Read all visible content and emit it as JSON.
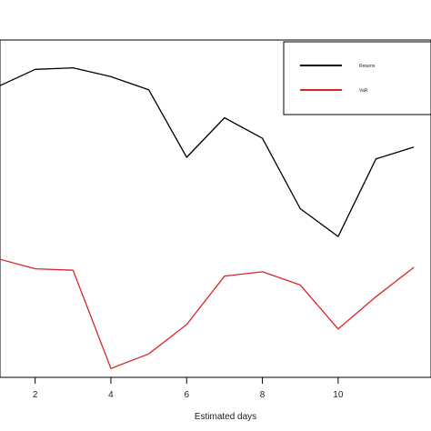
{
  "chart_data": {
    "type": "line",
    "title": "",
    "xlabel": "Estimated days",
    "ylabel": "",
    "xlim": [
      1,
      12.5
    ],
    "x_ticks": [
      2,
      4,
      6,
      8,
      10
    ],
    "x_tick_labels": [
      "2",
      "4",
      "6",
      "8",
      "10"
    ],
    "x": [
      1,
      2,
      3,
      4,
      5,
      6,
      7,
      8,
      9,
      10,
      11,
      12
    ],
    "series": [
      {
        "name": "Returns",
        "color": "#000000",
        "values": [
          0.89,
          0.95,
          0.955,
          0.925,
          0.88,
          0.65,
          0.785,
          0.715,
          0.475,
          0.38,
          0.645,
          0.685
        ]
      },
      {
        "name": "VaR",
        "color": "#d62728",
        "values": [
          0.305,
          0.27,
          0.265,
          -0.07,
          -0.02,
          0.08,
          0.245,
          0.26,
          0.215,
          0.065,
          0.175,
          0.275
        ]
      }
    ],
    "ylim": [
      -0.1,
      1.05
    ],
    "legend": {
      "position": "top-right",
      "entries": [
        "Returns",
        "VaR"
      ]
    },
    "grid": false
  }
}
